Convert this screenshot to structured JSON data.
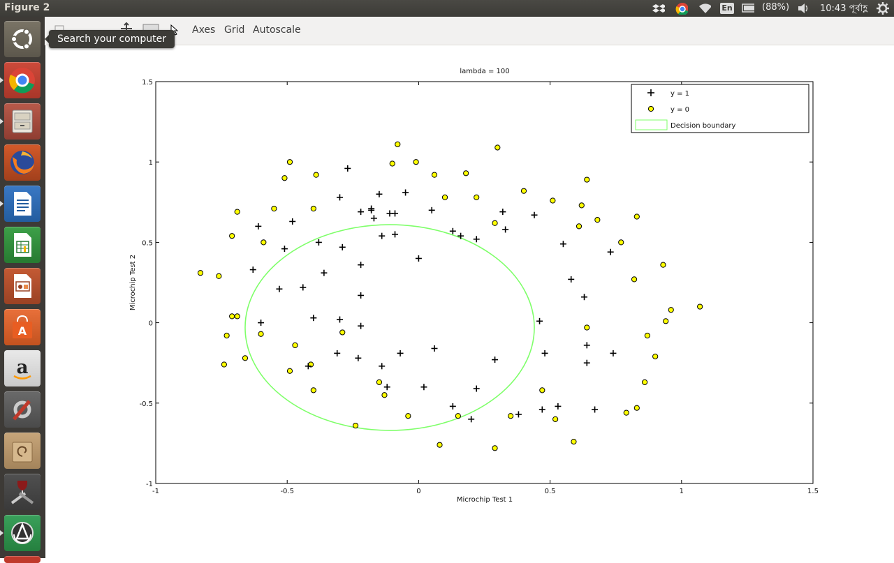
{
  "window": {
    "title": "Figure 2"
  },
  "top_panel": {
    "keyboard_layout": "En",
    "battery": "(88%)",
    "clock": "10:43 পূর্বাহ্ণ",
    "icons": [
      "dropbox-icon",
      "chrome-icon",
      "wifi-icon",
      "keyboard-icon",
      "battery-icon",
      "volume-icon",
      "gear-icon"
    ]
  },
  "launcher": {
    "tooltip": "Search your computer",
    "items": [
      "dash-home",
      "chrome",
      "files",
      "firefox",
      "libreoffice-writer",
      "libreoffice-calc",
      "libreoffice-impress",
      "software-center",
      "amazon",
      "system-settings",
      "archive-manager",
      "wine",
      "software-updater"
    ]
  },
  "toolbar": {
    "items": [
      "Axes",
      "Grid",
      "Autoscale"
    ]
  },
  "colors": {
    "positive_marker": "#000000",
    "negative_marker_fill": "#ffff00",
    "boundary": "#7fff6a"
  },
  "chart_data": {
    "type": "scatter",
    "title": "lambda = 100",
    "xlabel": "Microchip Test 1",
    "ylabel": "Microchip Test 2",
    "xlim": [
      -1,
      1.5
    ],
    "ylim": [
      -1,
      1.5
    ],
    "xticks": [
      -1,
      -0.5,
      0,
      0.5,
      1,
      1.5
    ],
    "yticks": [
      -1,
      -0.5,
      0,
      0.5,
      1,
      1.5
    ],
    "xtick_labels": [
      "-1",
      "-0.5",
      "0",
      "0.5",
      "1",
      "1.5"
    ],
    "ytick_labels": [
      "-1",
      "-0.5",
      "0",
      "0.5",
      "1",
      "1.5"
    ],
    "legend_position": "top-right",
    "grid": false,
    "series": [
      {
        "name": "y = 1",
        "marker": "plus",
        "x": [
          -0.27,
          -0.3,
          -0.15,
          -0.05,
          -0.22,
          -0.18,
          -0.11,
          0.05,
          -0.48,
          -0.61,
          -0.51,
          -0.38,
          -0.29,
          -0.22,
          -0.14,
          -0.09,
          0.0,
          -0.63,
          -0.53,
          -0.44,
          -0.36,
          -0.22,
          0.13,
          0.16,
          0.22,
          0.32,
          0.33,
          0.44,
          0.55,
          0.58,
          0.63,
          0.73,
          -0.6,
          -0.4,
          -0.3,
          -0.22,
          0.46,
          0.48,
          0.64,
          0.74,
          -0.42,
          -0.31,
          -0.23,
          -0.14,
          -0.07,
          0.06,
          0.29,
          0.64,
          -0.12,
          0.02,
          0.22,
          0.13,
          0.2,
          0.38,
          0.47,
          0.53,
          0.67,
          -0.17,
          -0.18,
          -0.09
        ],
        "y": [
          0.96,
          0.78,
          0.8,
          0.81,
          0.69,
          0.7,
          0.68,
          0.7,
          0.63,
          0.6,
          0.46,
          0.5,
          0.47,
          0.36,
          0.54,
          0.55,
          0.4,
          0.33,
          0.21,
          0.22,
          0.31,
          0.17,
          0.57,
          0.54,
          0.52,
          0.69,
          0.58,
          0.67,
          0.49,
          0.27,
          0.16,
          0.44,
          0.0,
          0.03,
          0.02,
          -0.02,
          0.01,
          -0.19,
          -0.14,
          -0.19,
          -0.27,
          -0.19,
          -0.22,
          -0.27,
          -0.19,
          -0.16,
          -0.23,
          -0.25,
          -0.4,
          -0.4,
          -0.41,
          -0.52,
          -0.6,
          -0.57,
          -0.54,
          -0.52,
          -0.54,
          0.65,
          0.71,
          0.68
        ]
      },
      {
        "name": "y = 0",
        "marker": "circle",
        "x": [
          -0.83,
          -0.76,
          -0.71,
          -0.69,
          -0.51,
          -0.49,
          -0.39,
          -0.4,
          -0.55,
          -0.59,
          -0.71,
          -0.73,
          -0.69,
          -0.74,
          -0.66,
          -0.6,
          -0.47,
          -0.49,
          -0.41,
          -0.4,
          -0.29,
          -0.15,
          -0.13,
          -0.24,
          -0.04,
          0.08,
          0.15,
          0.29,
          0.35,
          0.47,
          0.52,
          0.59,
          0.79,
          0.83,
          -0.1,
          -0.08,
          -0.01,
          0.06,
          0.1,
          0.18,
          0.22,
          0.3,
          0.4,
          0.51,
          0.62,
          0.64,
          0.61,
          0.68,
          0.77,
          0.83,
          0.82,
          0.93,
          0.96,
          1.07,
          0.94,
          0.87,
          0.9,
          0.86,
          0.64,
          0.29
        ],
        "y": [
          0.31,
          0.29,
          0.54,
          0.69,
          0.9,
          1.0,
          0.92,
          0.71,
          0.71,
          0.5,
          0.04,
          -0.08,
          0.04,
          -0.26,
          -0.22,
          -0.07,
          -0.14,
          -0.3,
          -0.26,
          -0.42,
          -0.06,
          -0.37,
          -0.45,
          -0.64,
          -0.58,
          -0.76,
          -0.58,
          -0.78,
          -0.58,
          -0.42,
          -0.6,
          -0.74,
          -0.56,
          -0.53,
          0.99,
          1.11,
          1.0,
          0.92,
          0.78,
          0.93,
          0.78,
          1.09,
          0.82,
          0.76,
          0.73,
          0.89,
          0.6,
          0.64,
          0.5,
          0.66,
          0.27,
          0.36,
          0.08,
          0.1,
          0.01,
          -0.08,
          -0.21,
          -0.37,
          -0.03,
          0.62
        ]
      },
      {
        "name": "Decision boundary",
        "type": "contour",
        "center": [
          -0.11,
          -0.03
        ],
        "radius_x": 0.55,
        "radius_y": 0.64
      }
    ]
  }
}
